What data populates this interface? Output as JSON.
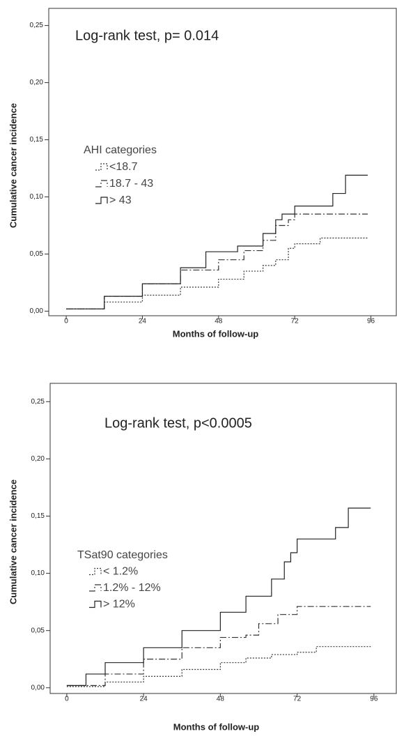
{
  "chart_data": [
    {
      "type": "line",
      "step": true,
      "annotation": "Log-rank test,   p= 0.014",
      "ylabel": "Cumulative cancer incidence",
      "xlabel": "Months of follow-up",
      "legend_title": "AHI categories",
      "xlim": [
        -5.5,
        104
      ],
      "xticks": [
        0,
        24,
        48,
        72,
        96
      ],
      "ylim": [
        -0.004,
        0.265
      ],
      "yticks": [
        {
          "value": 0,
          "label": "0,00"
        },
        {
          "value": 0.05,
          "label": "0,05"
        },
        {
          "value": 0.1,
          "label": "0,10"
        },
        {
          "value": 0.15,
          "label": "0,15"
        },
        {
          "value": 0.2,
          "label": "0,20"
        },
        {
          "value": 0.25,
          "label": "0,25"
        }
      ],
      "series": [
        {
          "name": "<18.7",
          "color": "#333333",
          "dash": "dotted",
          "x": [
            0,
            12,
            24,
            36,
            48,
            56,
            62,
            66,
            70,
            72,
            80,
            95
          ],
          "values": [
            0.002,
            0.008,
            0.014,
            0.021,
            0.028,
            0.035,
            0.04,
            0.045,
            0.055,
            0.059,
            0.064,
            0.064
          ]
        },
        {
          "name": "18.7 - 43",
          "color": "#333333",
          "dash": "dashdot",
          "x": [
            0,
            12,
            24,
            36,
            48,
            56,
            62,
            66,
            70,
            72,
            95
          ],
          "values": [
            0.002,
            0.013,
            0.024,
            0.036,
            0.045,
            0.053,
            0.062,
            0.075,
            0.08,
            0.085,
            0.085
          ]
        },
        {
          "name": "> 43",
          "color": "#222222",
          "dash": "solid",
          "x": [
            0,
            12,
            24,
            36,
            44,
            54,
            62,
            66,
            68,
            72,
            84,
            88,
            95
          ],
          "values": [
            0.002,
            0.013,
            0.024,
            0.038,
            0.052,
            0.057,
            0.068,
            0.08,
            0.085,
            0.092,
            0.103,
            0.119,
            0.119
          ]
        }
      ]
    },
    {
      "type": "line",
      "step": true,
      "annotation": "Log-rank test,   p<0.0005",
      "ylabel": "Cumulative cancer incidence",
      "xlabel": "Months of follow-up",
      "legend_title": "TSat90 categories",
      "xlim": [
        -5.2,
        103
      ],
      "xticks": [
        0,
        24,
        48,
        72,
        96
      ],
      "ylim": [
        -0.005,
        0.266
      ],
      "yticks": [
        {
          "value": 0,
          "label": "0,00"
        },
        {
          "value": 0.05,
          "label": "0,05"
        },
        {
          "value": 0.1,
          "label": "0,10"
        },
        {
          "value": 0.15,
          "label": "0,15"
        },
        {
          "value": 0.2,
          "label": "0,20"
        },
        {
          "value": 0.25,
          "label": "0,25"
        }
      ],
      "series": [
        {
          "name": "< 1.2%",
          "color": "#333333",
          "dash": "dotted",
          "x": [
            0,
            12,
            24,
            36,
            48,
            56,
            64,
            72,
            78,
            95
          ],
          "values": [
            0.001,
            0.005,
            0.01,
            0.016,
            0.022,
            0.026,
            0.029,
            0.031,
            0.036,
            0.036
          ]
        },
        {
          "name": "1.2% - 12%",
          "color": "#333333",
          "dash": "dashdot",
          "x": [
            0,
            12,
            24,
            36,
            48,
            56,
            60,
            66,
            72,
            95
          ],
          "values": [
            0.002,
            0.012,
            0.025,
            0.035,
            0.044,
            0.046,
            0.056,
            0.064,
            0.071,
            0.071
          ]
        },
        {
          "name": "> 12%",
          "color": "#222222",
          "dash": "solid",
          "x": [
            0,
            6,
            12,
            24,
            36,
            48,
            56,
            64,
            68,
            70,
            72,
            84,
            88,
            95
          ],
          "values": [
            0.002,
            0.012,
            0.022,
            0.035,
            0.05,
            0.066,
            0.08,
            0.095,
            0.11,
            0.118,
            0.13,
            0.14,
            0.157,
            0.157
          ]
        }
      ]
    }
  ]
}
